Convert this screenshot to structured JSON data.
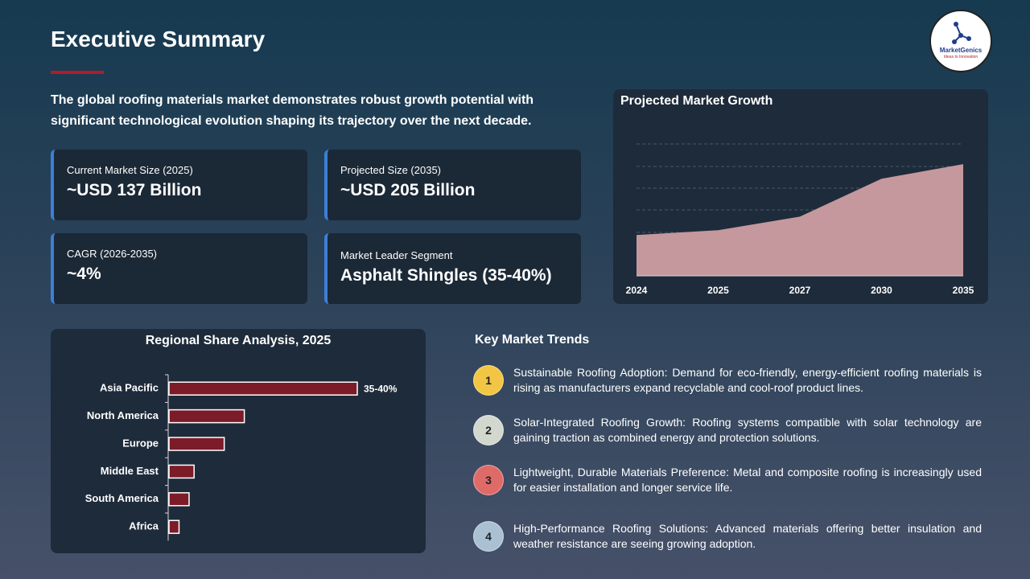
{
  "header": {
    "title": "Executive Summary",
    "logo": {
      "name": "MarketGenics",
      "tagline": "Ideas to Innovation"
    }
  },
  "intro": "The global roofing materials market demonstrates robust growth potential with significant technological evolution shaping its trajectory over the next decade.",
  "stats": [
    {
      "label": "Current Market Size (2025)",
      "value": "~USD 137 Billion"
    },
    {
      "label": "Projected Size (2035)",
      "value": "~USD 205 Billion"
    },
    {
      "label": "CAGR (2026-2035)",
      "value": "~4%"
    },
    {
      "label": "Market Leader Segment",
      "value": "Asphalt Shingles (35-40%)"
    }
  ],
  "chart_data": [
    {
      "type": "area",
      "title": "Projected Market Growth",
      "categories": [
        "2024",
        "2025",
        "2027",
        "2030",
        "2035"
      ],
      "values": [
        132,
        137,
        151,
        190,
        205
      ],
      "color": "#c4989d",
      "ylim": [
        90,
        230
      ],
      "grid": true
    },
    {
      "type": "hbar",
      "title": "Regional Share Analysis, 2025",
      "categories": [
        "Asia Pacific",
        "North America",
        "Europe",
        "Middle East",
        "South America",
        "Africa"
      ],
      "values": [
        37.5,
        15,
        11,
        5,
        4,
        2
      ],
      "value_labels": [
        "35-40%",
        null,
        null,
        null,
        null,
        null
      ],
      "color": "#7b1c28",
      "xlim": [
        0,
        50
      ]
    }
  ],
  "trends": {
    "title": "Key Market Trends",
    "items": [
      {
        "number": 1,
        "color": "#f2c644",
        "text": "Sustainable Roofing Adoption: Demand for eco-friendly, energy-efficient roofing materials is rising as manufacturers expand recyclable and cool-roof product lines."
      },
      {
        "number": 2,
        "color": "#d3d8cf",
        "text": "Solar-Integrated Roofing Growth: Roofing systems compatible with solar technology are gaining traction as combined energy and protection solutions."
      },
      {
        "number": 3,
        "color": "#df6b69",
        "text": "Lightweight, Durable Materials Preference: Metal and composite roofing is increasingly used for easier installation and longer service life."
      },
      {
        "number": 4,
        "color": "#a9c1d3",
        "text": "High-Performance Roofing Solutions: Advanced materials offering better insulation and weather resistance are seeing growing adoption."
      }
    ]
  }
}
